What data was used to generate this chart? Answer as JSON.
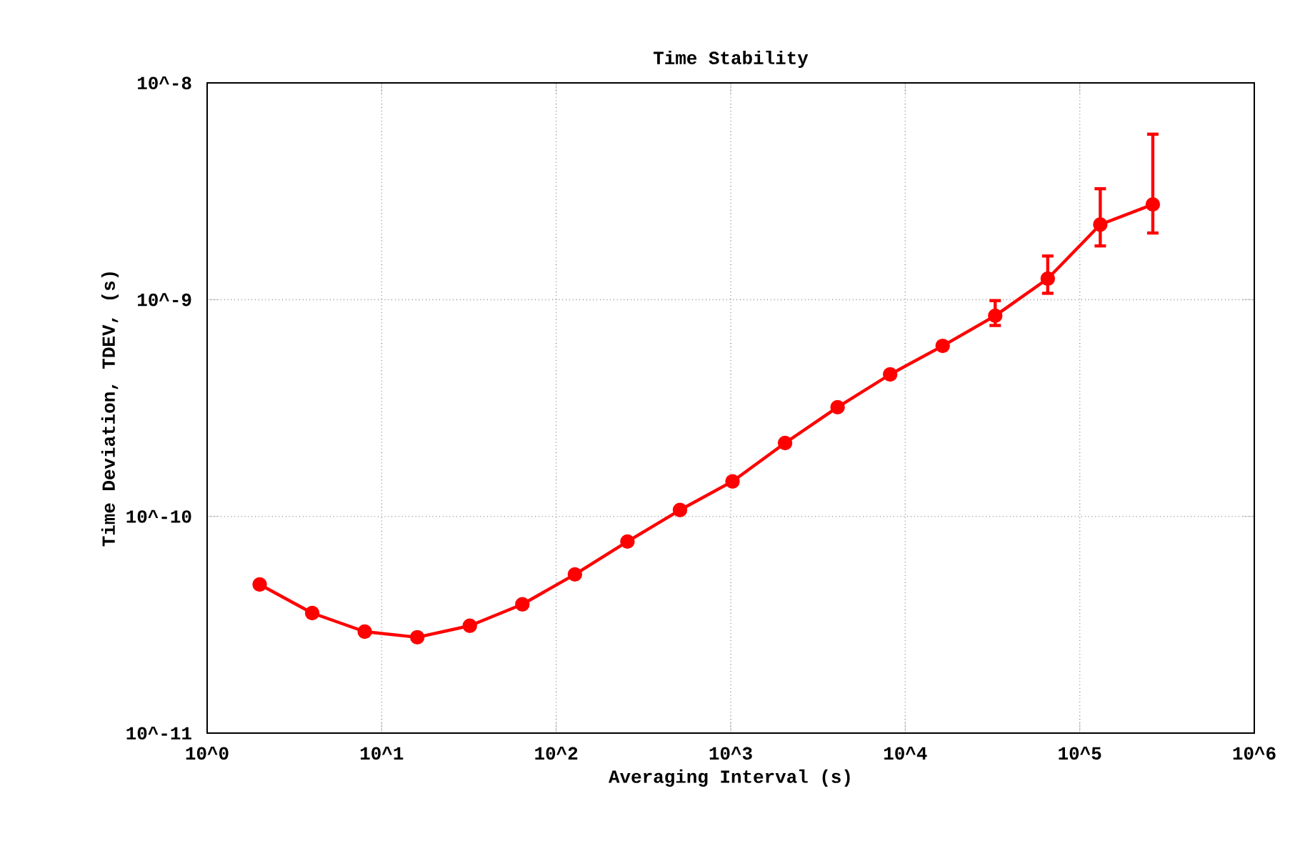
{
  "chart_data": {
    "type": "line",
    "title": "Time Stability",
    "xlabel": "Averaging Interval (s)",
    "ylabel": "Time Deviation, TDEV, (s)",
    "log": "xy",
    "grid": true,
    "marker": "circle",
    "line_style": "solid",
    "xlim": [
      1,
      1000000
    ],
    "ylim": [
      1e-11,
      1e-08
    ],
    "xticks": [
      {
        "value": 1,
        "label": "10^0"
      },
      {
        "value": 10,
        "label": "10^1"
      },
      {
        "value": 100,
        "label": "10^2"
      },
      {
        "value": 1000,
        "label": "10^3"
      },
      {
        "value": 10000,
        "label": "10^4"
      },
      {
        "value": 100000,
        "label": "10^5"
      },
      {
        "value": 1000000,
        "label": "10^6"
      }
    ],
    "yticks": [
      {
        "value": 1e-11,
        "label": "10^-11"
      },
      {
        "value": 1e-10,
        "label": "10^-10"
      },
      {
        "value": 1e-09,
        "label": "10^-9"
      },
      {
        "value": 1e-08,
        "label": "10^-8"
      }
    ],
    "x": [
      2,
      4,
      8,
      16,
      32,
      64,
      128,
      256,
      512,
      1024,
      2048,
      4096,
      8192,
      16384,
      32768,
      65536,
      131072,
      262144
    ],
    "series": [
      {
        "color": "#ff0000",
        "values": [
          4.85e-11,
          3.58e-11,
          2.94e-11,
          2.77e-11,
          3.13e-11,
          3.93e-11,
          5.4e-11,
          7.66e-11,
          1.07e-10,
          1.45e-10,
          2.18e-10,
          3.19e-10,
          4.52e-10,
          6.12e-10,
          8.43e-10,
          1.25e-09,
          2.22e-09,
          2.75e-09
        ],
        "errors": [
          null,
          null,
          null,
          null,
          null,
          null,
          null,
          null,
          null,
          null,
          null,
          null,
          null,
          null,
          [
            7.6e-10,
            9.9e-10
          ],
          [
            1.07e-09,
            1.59e-09
          ],
          [
            1.77e-09,
            3.25e-09
          ],
          [
            2.03e-09,
            5.8e-09
          ]
        ]
      }
    ]
  }
}
